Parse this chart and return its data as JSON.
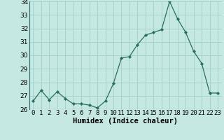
{
  "x": [
    0,
    1,
    2,
    3,
    4,
    5,
    6,
    7,
    8,
    9,
    10,
    11,
    12,
    13,
    14,
    15,
    16,
    17,
    18,
    19,
    20,
    21,
    22,
    23
  ],
  "y": [
    26.6,
    27.4,
    26.7,
    27.3,
    26.8,
    26.4,
    26.4,
    26.3,
    26.1,
    26.6,
    27.9,
    29.8,
    29.9,
    30.8,
    31.5,
    31.7,
    31.9,
    34.0,
    32.7,
    31.7,
    30.3,
    29.4,
    27.2,
    27.2
  ],
  "ylim": [
    26,
    34
  ],
  "yticks": [
    26,
    27,
    28,
    29,
    30,
    31,
    32,
    33,
    34
  ],
  "xtick_labels": [
    "0",
    "1",
    "2",
    "3",
    "4",
    "5",
    "6",
    "7",
    "8",
    "9",
    "10",
    "11",
    "12",
    "13",
    "14",
    "15",
    "16",
    "17",
    "18",
    "19",
    "20",
    "21",
    "22",
    "23"
  ],
  "xlabel": "Humidex (Indice chaleur)",
  "line_color": "#2a6e63",
  "marker_color": "#2a6e63",
  "bg_color": "#c5e8e3",
  "grid_color": "#9ececa",
  "xlabel_fontsize": 7.5,
  "tick_fontsize": 6.5
}
